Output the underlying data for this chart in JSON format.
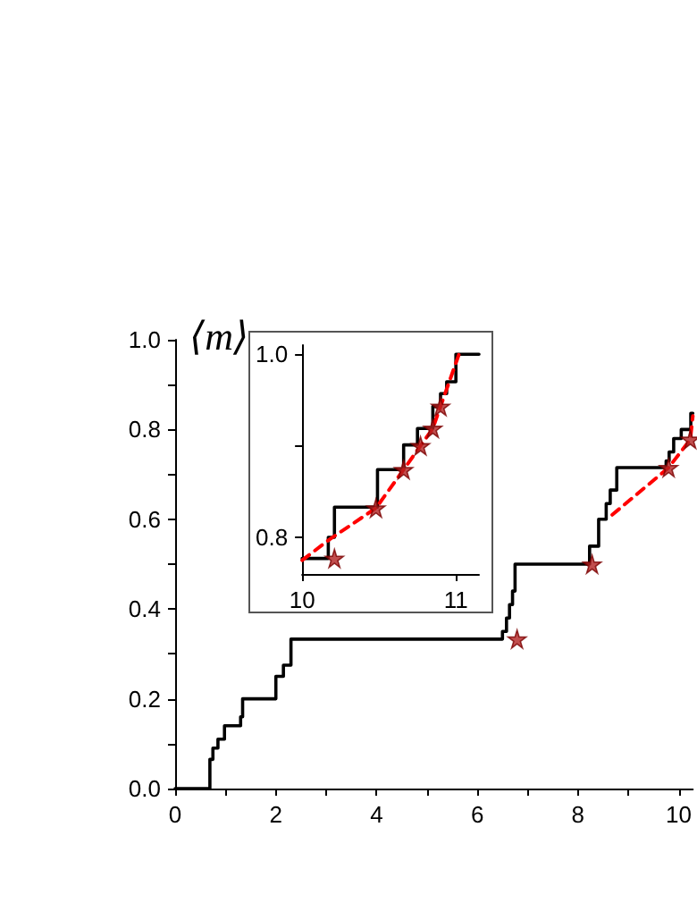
{
  "chart_data": [
    {
      "type": "step",
      "ylabel": "⟨m⟩",
      "xlim": [
        0,
        10.28
      ],
      "ylim": [
        0,
        1.0
      ],
      "xticks": [
        0,
        {
          "value": 1,
          "label": null
        },
        2,
        {
          "value": 3,
          "label": null
        },
        4,
        {
          "value": 5,
          "label": null
        },
        6,
        {
          "value": 7,
          "label": null
        },
        8,
        {
          "value": 9,
          "label": null
        },
        10
      ],
      "yticks": [
        {
          "value": 0,
          "label": "0.0"
        },
        {
          "value": 0.1,
          "label": null
        },
        {
          "value": 0.2,
          "label": "0.2"
        },
        {
          "value": 0.3,
          "label": null
        },
        {
          "value": 0.4,
          "label": "0.4"
        },
        {
          "value": 0.5,
          "label": null
        },
        {
          "value": 0.6,
          "label": "0.6"
        },
        {
          "value": 0.7,
          "label": null
        },
        {
          "value": 0.8,
          "label": "0.8"
        },
        {
          "value": 0.9,
          "label": null
        },
        {
          "value": 1.0,
          "label": "1.0"
        }
      ],
      "grid": false,
      "series": [
        {
          "color": "#000000",
          "marker": "none",
          "line_style": "solid",
          "x": [
            0,
            0.69,
            0.75,
            0.85,
            0.98,
            1.3,
            1.34,
            2.0,
            2.15,
            2.3,
            6.5,
            6.58,
            6.64,
            6.7,
            6.75,
            8.23,
            8.41,
            8.56,
            8.64,
            8.77,
            9.75,
            9.81,
            9.9,
            10.05,
            10.24,
            10.28
          ],
          "values": [
            0,
            0.065,
            0.09,
            0.11,
            0.14,
            0.16,
            0.2,
            0.25,
            0.275,
            0.333,
            0.35,
            0.38,
            0.41,
            0.44,
            0.5,
            0.54,
            0.6,
            0.635,
            0.665,
            0.715,
            0.73,
            0.75,
            0.78,
            0.8,
            0.836,
            0.836
          ]
        },
        {
          "type": "scatter",
          "color": "#b22222",
          "marker": "star",
          "x": [
            6.79,
            8.28,
            9.8,
            10.23
          ],
          "values": [
            0.333,
            0.5,
            0.715,
            0.778
          ]
        },
        {
          "type": "line",
          "color": "#ff0000",
          "marker": "none",
          "line_style": "dashed",
          "x": [
            8.68,
            9.8,
            10.23,
            10.28
          ],
          "values": [
            0.61,
            0.715,
            0.778,
            0.83
          ]
        }
      ]
    },
    {
      "type": "step",
      "xlim": [
        10,
        11.15
      ],
      "ylim": [
        0.76,
        1.01
      ],
      "xticks": [
        10,
        11
      ],
      "yticks": [
        {
          "value": 0.8,
          "label": "0.8"
        },
        {
          "value": 0.9,
          "label": null
        },
        {
          "value": 1.0,
          "label": "1.0"
        }
      ],
      "grid": false,
      "series": [
        {
          "color": "#000000",
          "marker": "none",
          "line_style": "solid",
          "x": [
            10,
            10.17,
            10.21,
            10.49,
            10.66,
            10.75,
            10.85,
            10.9,
            10.94,
            11.0,
            11.15
          ],
          "values": [
            0.777,
            0.8,
            0.833,
            0.874,
            0.901,
            0.919,
            0.943,
            0.957,
            0.97,
            1.0,
            1.0
          ]
        },
        {
          "type": "scatter",
          "color": "#b22222",
          "marker": "star",
          "x": [
            10.21,
            10.48,
            10.66,
            10.77,
            10.85,
            10.9
          ],
          "values": [
            0.777,
            0.832,
            0.874,
            0.9,
            0.919,
            0.943
          ]
        },
        {
          "type": "line",
          "color": "#ff0000",
          "marker": "none",
          "line_style": "dashed",
          "x": [
            10,
            10.18,
            10.48,
            10.66,
            10.77,
            10.85,
            10.9,
            11.02
          ],
          "values": [
            0.775,
            0.798,
            0.832,
            0.874,
            0.9,
            0.919,
            0.943,
            1.0
          ]
        }
      ]
    }
  ]
}
